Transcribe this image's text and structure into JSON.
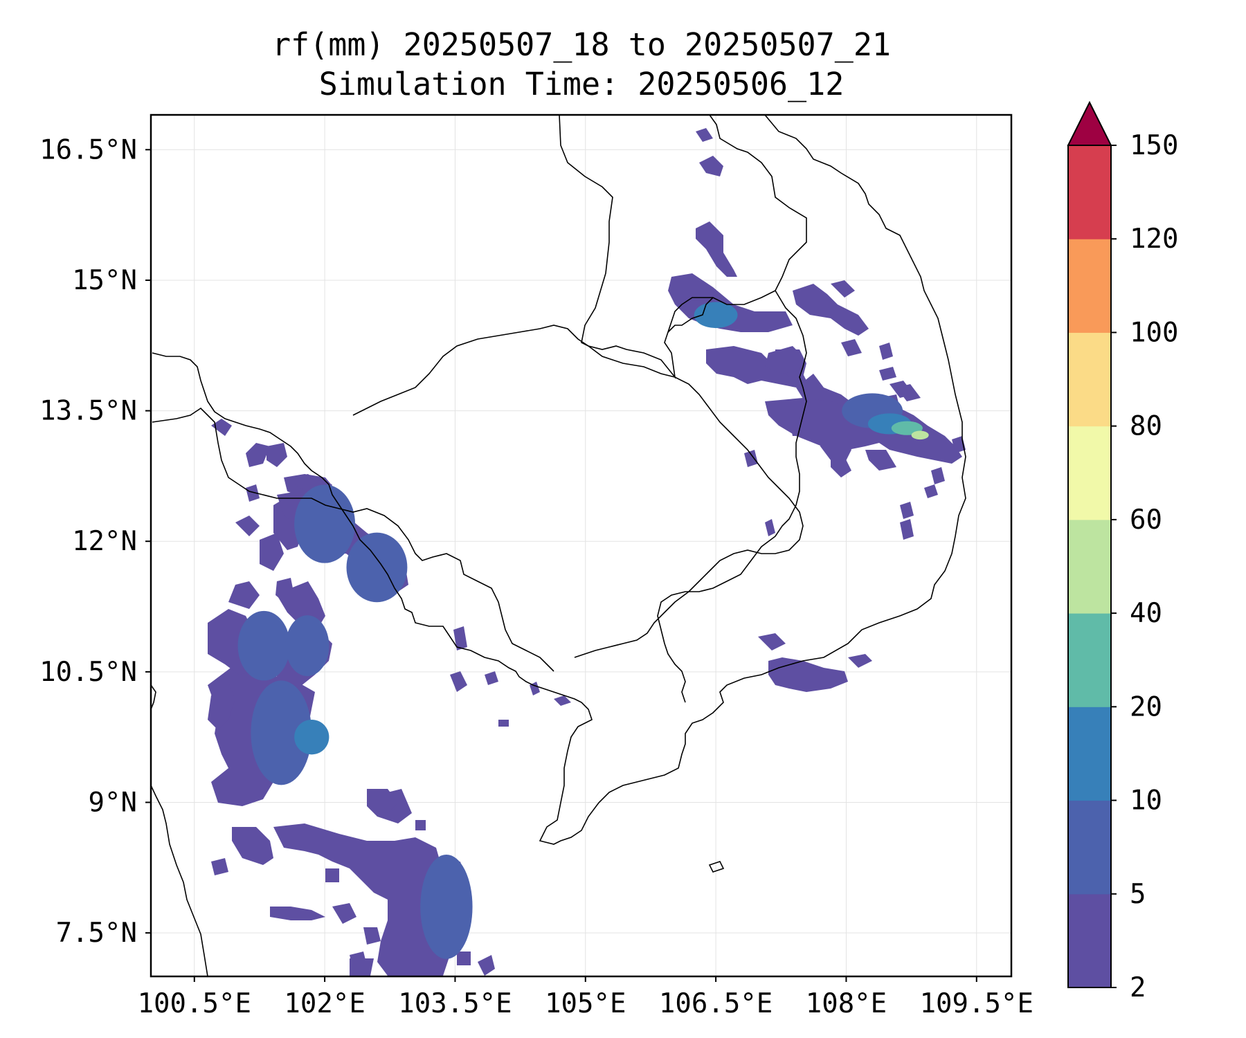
{
  "title": {
    "line1": "rf(mm) 20250507_18 to 20250507_21",
    "line2": "Simulation Time: 20250506_12"
  },
  "map": {
    "projection": "PlateCarree",
    "lon_range": [
      100.0,
      109.9
    ],
    "lat_range": [
      7.0,
      16.9
    ],
    "gridlines": true,
    "lon_ticks": [
      {
        "value": 100.5,
        "label": "100.5°E"
      },
      {
        "value": 102.0,
        "label": "102°E"
      },
      {
        "value": 103.5,
        "label": "103.5°E"
      },
      {
        "value": 105.0,
        "label": "105°E"
      },
      {
        "value": 106.5,
        "label": "106.5°E"
      },
      {
        "value": 108.0,
        "label": "108°E"
      },
      {
        "value": 109.5,
        "label": "109.5°E"
      }
    ],
    "lat_ticks": [
      {
        "value": 16.5,
        "label": "16.5°N"
      },
      {
        "value": 15.0,
        "label": "15°N"
      },
      {
        "value": 13.5,
        "label": "13.5°N"
      },
      {
        "value": 12.0,
        "label": "12°N"
      },
      {
        "value": 10.5,
        "label": "10.5°N"
      },
      {
        "value": 9.0,
        "label": "9°N"
      },
      {
        "value": 7.5,
        "label": "7.5°N"
      }
    ]
  },
  "colorbar": {
    "levels": [
      2,
      5,
      10,
      20,
      40,
      60,
      80,
      100,
      120,
      150
    ],
    "labels": [
      "2",
      "5",
      "10",
      "20",
      "40",
      "60",
      "80",
      "100",
      "120",
      "150"
    ],
    "colors": [
      "#5e4fa2",
      "#4c62ad",
      "#3780b9",
      "#60bba8",
      "#bde4a0",
      "#f1f9a9",
      "#fbdb87",
      "#f99a59",
      "#d63e4f"
    ],
    "extend": "max",
    "extend_color": "#9e0142"
  },
  "rain_cells": [
    {
      "lon": 101.5,
      "lat": 9.8,
      "rx": 0.35,
      "ry": 0.6,
      "level": 1
    },
    {
      "lon": 101.85,
      "lat": 9.75,
      "rx": 0.2,
      "ry": 0.2,
      "level": 2
    },
    {
      "lon": 101.3,
      "lat": 10.8,
      "rx": 0.3,
      "ry": 0.4,
      "level": 1
    },
    {
      "lon": 101.8,
      "lat": 10.8,
      "rx": 0.25,
      "ry": 0.35,
      "level": 1
    },
    {
      "lon": 102.0,
      "lat": 12.2,
      "rx": 0.35,
      "ry": 0.45,
      "level": 1
    },
    {
      "lon": 102.6,
      "lat": 11.7,
      "rx": 0.35,
      "ry": 0.4,
      "level": 1
    },
    {
      "lon": 103.4,
      "lat": 7.8,
      "rx": 0.3,
      "ry": 0.6,
      "level": 1
    },
    {
      "lon": 106.5,
      "lat": 14.6,
      "rx": 0.25,
      "ry": 0.15,
      "level": 2
    },
    {
      "lon": 108.3,
      "lat": 13.5,
      "rx": 0.35,
      "ry": 0.2,
      "level": 1
    },
    {
      "lon": 108.5,
      "lat": 13.35,
      "rx": 0.25,
      "ry": 0.12,
      "level": 2
    },
    {
      "lon": 108.7,
      "lat": 13.3,
      "rx": 0.18,
      "ry": 0.08,
      "level": 3
    },
    {
      "lon": 108.85,
      "lat": 13.22,
      "rx": 0.1,
      "ry": 0.05,
      "level": 4
    }
  ]
}
